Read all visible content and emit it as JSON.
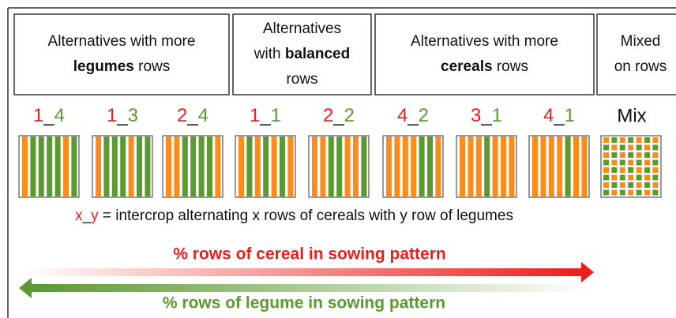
{
  "headers": [
    {
      "lines": [
        [
          {
            "text": "Alternatives with more"
          }
        ],
        [
          {
            "text": "legumes",
            "bold": true
          },
          {
            "text": " rows"
          }
        ]
      ]
    },
    {
      "lines": [
        [
          {
            "text": "Alternatives"
          }
        ],
        [
          {
            "text": "with "
          },
          {
            "text": "balanced",
            "bold": true
          }
        ],
        [
          {
            "text": "rows"
          }
        ]
      ]
    },
    {
      "lines": [
        [
          {
            "text": "Alternatives with more"
          }
        ],
        [
          {
            "text": "cereals",
            "bold": true
          },
          {
            "text": " rows"
          }
        ]
      ]
    },
    {
      "lines": [
        [
          {
            "text": "Mixed"
          }
        ],
        [
          {
            "text": "on rows"
          }
        ]
      ]
    }
  ],
  "patterns": [
    {
      "x": "1",
      "sep": "_",
      "y": "4"
    },
    {
      "x": "1",
      "sep": "_",
      "y": "3"
    },
    {
      "x": "2",
      "sep": "_",
      "y": "4"
    },
    {
      "x": "1",
      "sep": "_",
      "y": "1"
    },
    {
      "x": "2",
      "sep": "_",
      "y": "2"
    },
    {
      "x": "4",
      "sep": "_",
      "y": "2"
    },
    {
      "x": "3",
      "sep": "_",
      "y": "1"
    },
    {
      "x": "4",
      "sep": "_",
      "y": "1"
    }
  ],
  "mix_label": "Mix",
  "legend": {
    "x": "x",
    "sep": "_",
    "y": "y",
    "text": " = intercrop alternating x rows of cereals with y row of legumes"
  },
  "cereal_arrow": "% rows of cereal in sowing pattern",
  "legume_arrow": "% rows of legume in sowing pattern"
}
